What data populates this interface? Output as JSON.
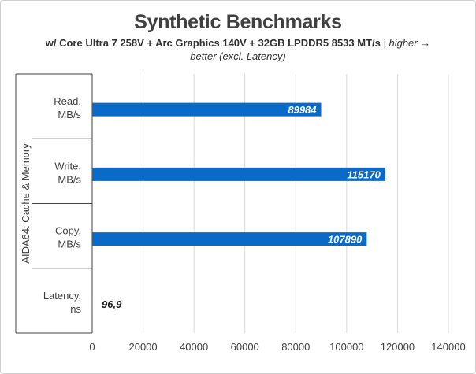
{
  "chart_data": {
    "type": "bar",
    "orientation": "horizontal",
    "title": "Synthetic Benchmarks",
    "subtitle_bold": "w/ Core Ultra 7 258V + Arc Graphics 140V + 32GB LPDDR5 8533 MT/s",
    "subtitle_italic": " | higher → better (excl. Latency)",
    "group_label": "AIDA64: Cache & Memory",
    "categories": [
      [
        "Read,",
        "MB/s"
      ],
      [
        "Write,",
        "MB/s"
      ],
      [
        "Copy,",
        "MB/s"
      ],
      [
        "Latency,",
        "ns"
      ]
    ],
    "values": [
      89984,
      115170,
      107890,
      96.9
    ],
    "data_labels": [
      "89984",
      "115170",
      "107890",
      "96,9"
    ],
    "xlim": [
      0,
      140000
    ],
    "xticks": [
      "0",
      "20000",
      "40000",
      "60000",
      "80000",
      "100000",
      "120000",
      "140000"
    ],
    "grid": true,
    "bar_color": "#0a6ac7",
    "label_color_inside": "#ffffff",
    "label_color_outside": "#222222"
  }
}
